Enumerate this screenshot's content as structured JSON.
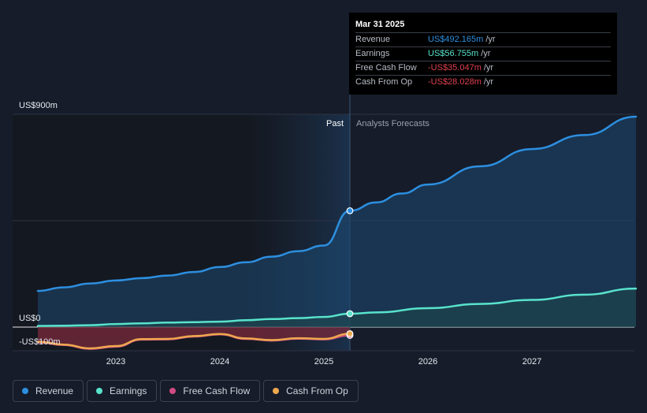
{
  "chart_data": {
    "type": "area",
    "ylim": [
      -100,
      900
    ],
    "y_tick_labels": [
      {
        "value": 900,
        "label": "US$900m"
      },
      {
        "value": 0,
        "label": "US$0"
      },
      {
        "value": -100,
        "label": "-US$100m"
      }
    ],
    "x_tick_labels": [
      {
        "year": 2023,
        "label": "2023"
      },
      {
        "year": 2024,
        "label": "2024"
      },
      {
        "year": 2025,
        "label": "2025"
      },
      {
        "year": 2026,
        "label": "2026"
      },
      {
        "year": 2027,
        "label": "2027"
      }
    ],
    "past_label": "Past",
    "forecast_label": "Analysts Forecasts",
    "cutoff_year": 2025.25,
    "series": [
      {
        "name": "Revenue",
        "color": "#2d8fe0",
        "x": [
          2022.25,
          2022.5,
          2022.75,
          2023.0,
          2023.25,
          2023.5,
          2023.75,
          2024.0,
          2024.25,
          2024.5,
          2024.75,
          2025.0,
          2025.25,
          2025.5,
          2025.75,
          2026.0,
          2026.5,
          2027.0,
          2027.5,
          2028.0
        ],
        "values": [
          153,
          168,
          184,
          197,
          207,
          218,
          233,
          254,
          274,
          298,
          321,
          345,
          492.165,
          527,
          565,
          603,
          680,
          753,
          812,
          890
        ],
        "forecast_start": 12
      },
      {
        "name": "Earnings",
        "color": "#58e3cb",
        "x": [
          2022.25,
          2022.5,
          2022.75,
          2023.0,
          2023.25,
          2023.5,
          2023.75,
          2024.0,
          2024.25,
          2024.5,
          2024.75,
          2025.0,
          2025.25,
          2025.5,
          2026.0,
          2026.5,
          2027.0,
          2027.5,
          2028.0
        ],
        "values": [
          5,
          6,
          8,
          13,
          16,
          19,
          21,
          23,
          29,
          34,
          38,
          43,
          56.755,
          62,
          80,
          98,
          115,
          137,
          163
        ],
        "forecast_start": 12
      },
      {
        "name": "Free Cash Flow",
        "color": "#d04b82",
        "x": [
          2022.25,
          2022.5,
          2022.75,
          2023.0,
          2023.25,
          2023.5,
          2023.75,
          2024.0,
          2024.25,
          2024.5,
          2024.75,
          2025.0,
          2025.25
        ],
        "values": [
          -64,
          -76,
          -92,
          -83,
          -53,
          -52,
          -40,
          -31,
          -50,
          -57,
          -49,
          -52,
          -35.047
        ]
      },
      {
        "name": "Cash From Op",
        "color": "#eda84e",
        "x": [
          2022.25,
          2022.5,
          2022.75,
          2023.0,
          2023.25,
          2023.5,
          2023.75,
          2024.0,
          2024.25,
          2024.5,
          2024.75,
          2025.0,
          2025.25
        ],
        "values": [
          -62,
          -74,
          -90,
          -80,
          -51,
          -50,
          -38,
          -29,
          -48,
          -55,
          -47,
          -50,
          -28.028
        ]
      }
    ],
    "tooltip": {
      "date": "Mar 31 2025",
      "rows": [
        {
          "label": "Revenue",
          "value": "US$492.165m",
          "unit": "/yr",
          "color": "#2d8fe0"
        },
        {
          "label": "Earnings",
          "value": "US$56.755m",
          "unit": "/yr",
          "color": "#58e3cb"
        },
        {
          "label": "Free Cash Flow",
          "value": "-US$35.047m",
          "unit": "/yr",
          "color": "#e0414e"
        },
        {
          "label": "Cash From Op",
          "value": "-US$28.028m",
          "unit": "/yr",
          "color": "#e0414e"
        }
      ]
    },
    "legend_placement": "bottom-left",
    "grid": true
  }
}
